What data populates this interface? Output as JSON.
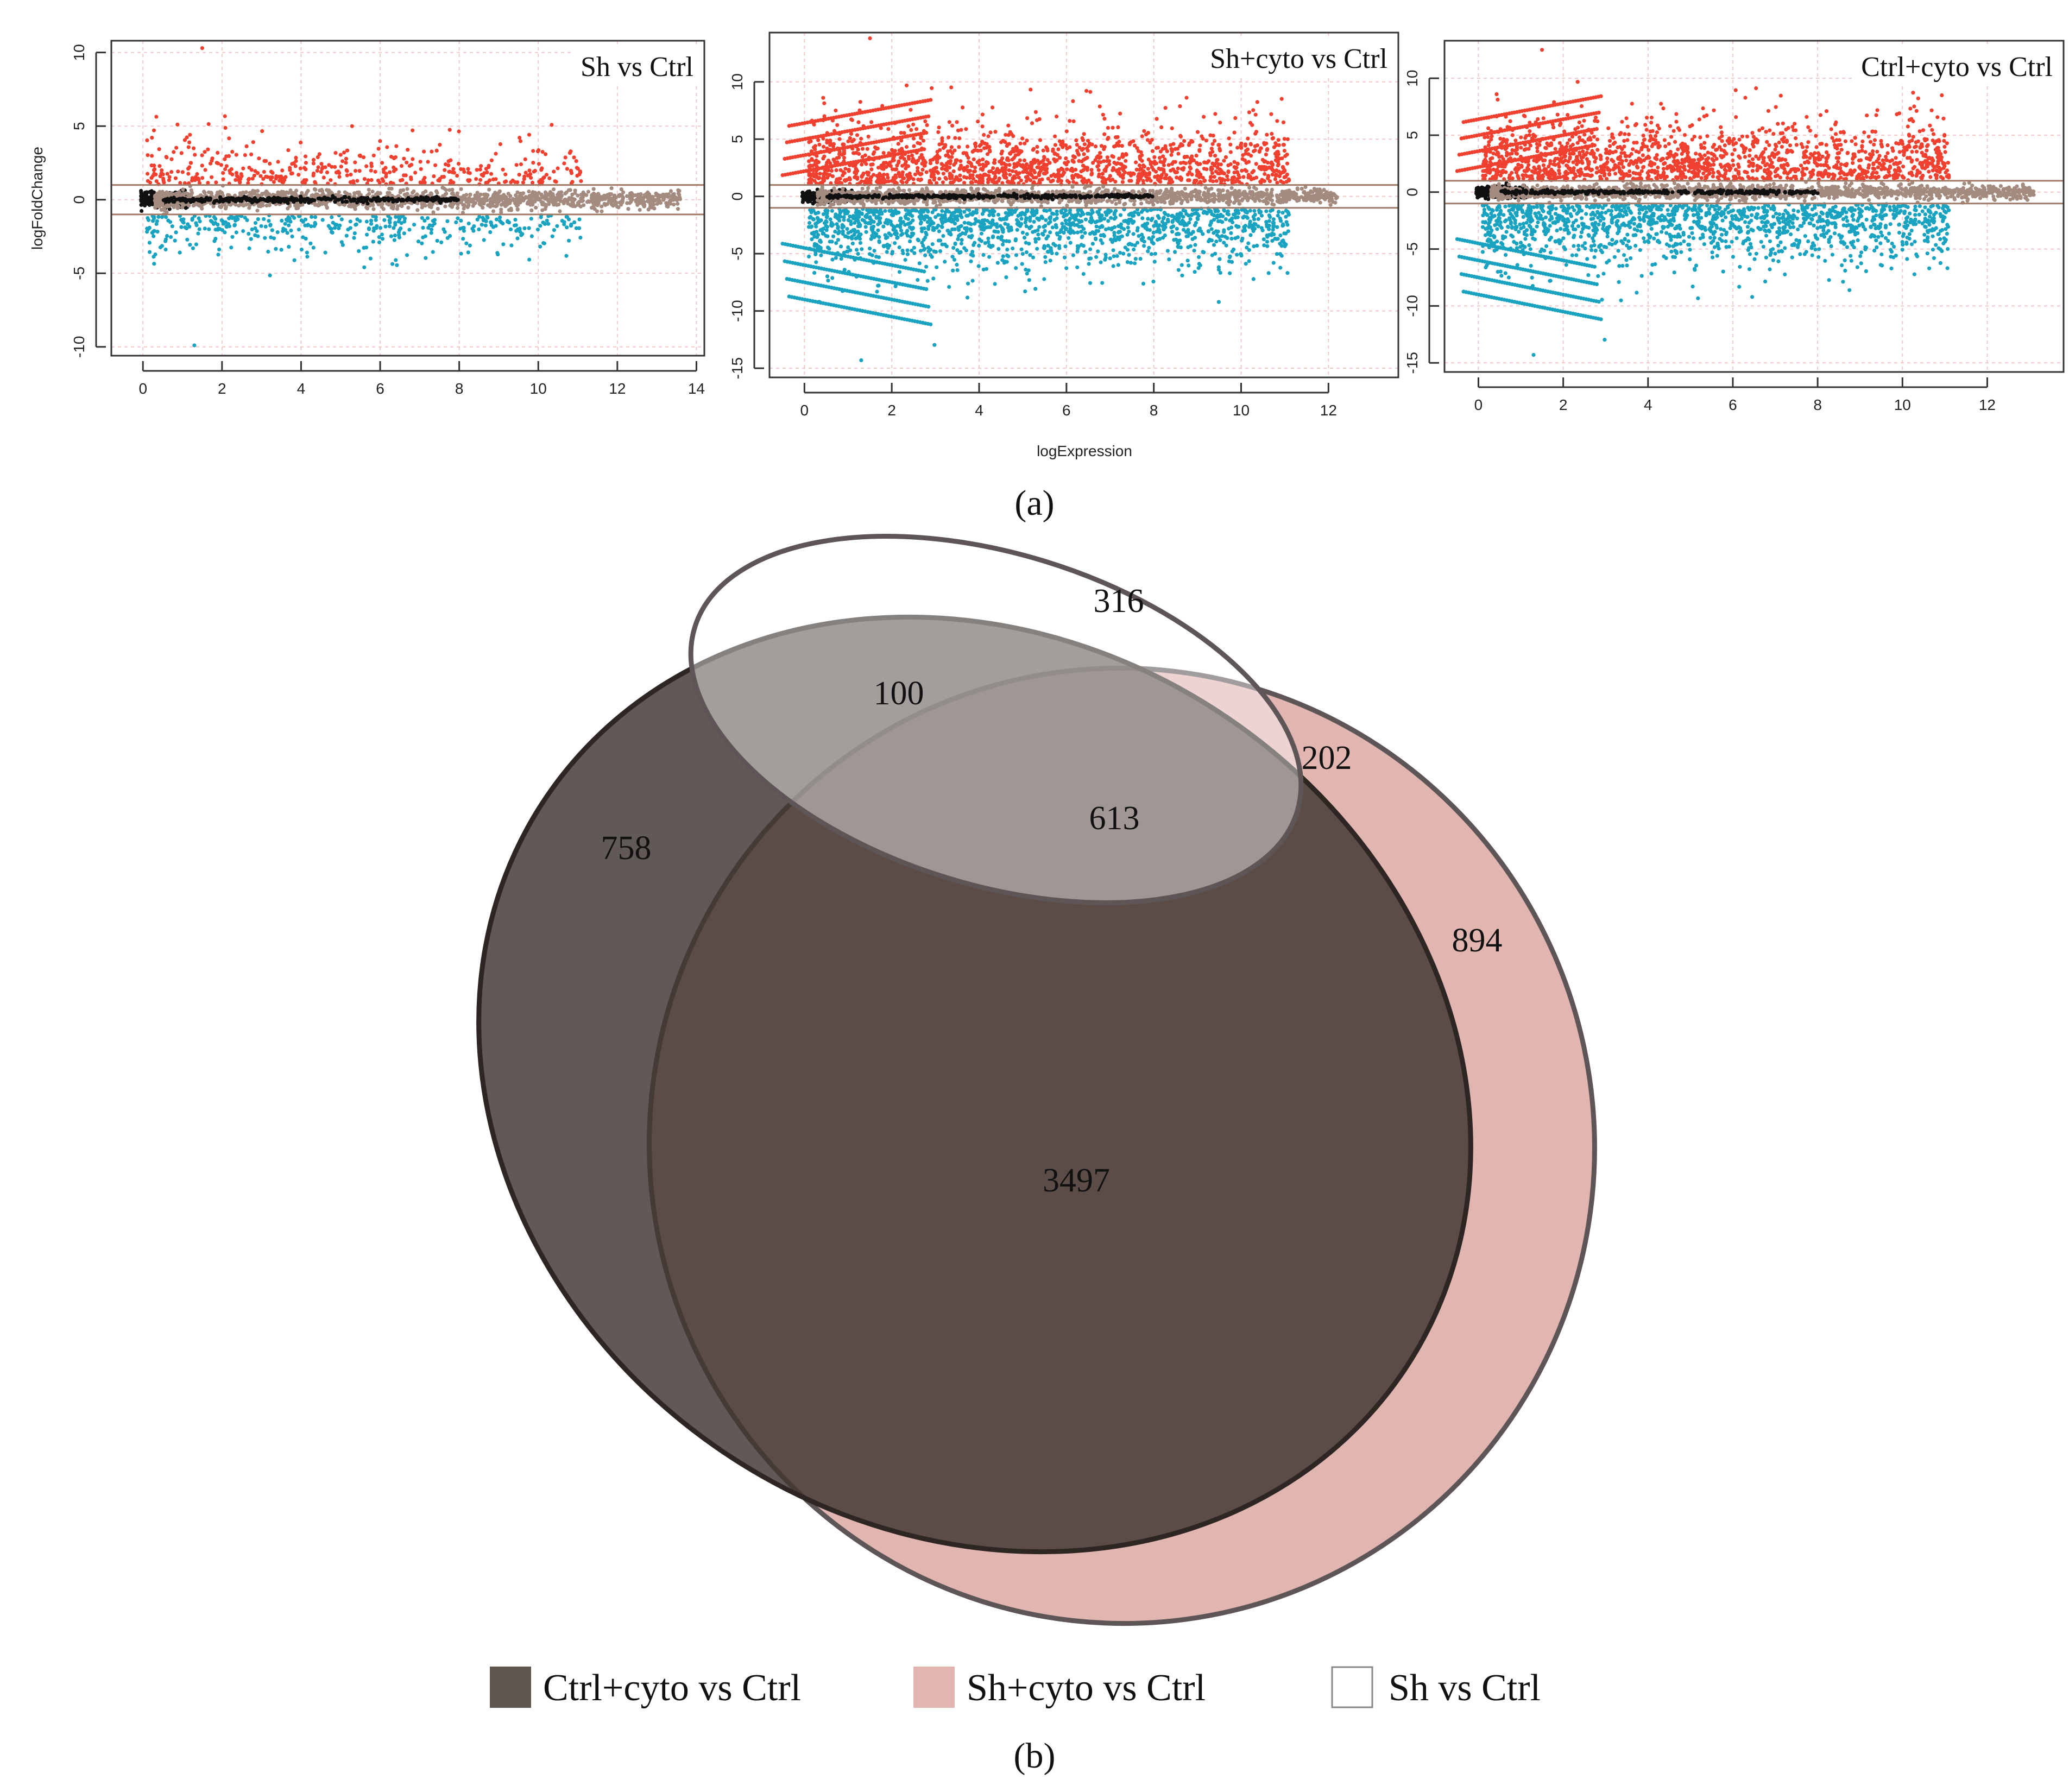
{
  "figure": {
    "panel_a_label": "(a)",
    "panel_b_label": "(b)",
    "shared_x_label": "logExpression"
  },
  "chart_data": [
    {
      "type": "scatter",
      "title": "Sh vs Ctrl",
      "ylabel": "logFoldChange",
      "xlabel": "",
      "xlim": [
        -0.8,
        14.2
      ],
      "ylim": [
        -10.6,
        10.8
      ],
      "x_ticks": [
        0,
        2,
        4,
        6,
        8,
        10,
        12,
        14
      ],
      "y_ticks": [
        -10,
        -5,
        0,
        5,
        10
      ],
      "thresholds": [
        1,
        -1
      ],
      "grid": true,
      "colors": {
        "up": "#f0402f",
        "down": "#1aa3c0",
        "ns": "#a38b80",
        "low": "#101010",
        "threshold": "#a07a66"
      },
      "point_summary": {
        "x_max": 13.8,
        "up_max": 10.3,
        "down_min": -10.1
      }
    },
    {
      "type": "scatter",
      "title": "Sh+cyto vs Ctrl",
      "ylabel": "",
      "xlabel": "logExpression",
      "xlim": [
        -0.8,
        13.6
      ],
      "ylim": [
        -15.8,
        14.3
      ],
      "x_ticks": [
        0,
        2,
        4,
        6,
        8,
        10,
        12
      ],
      "y_ticks": [
        -15,
        -10,
        -5,
        0,
        5,
        10
      ],
      "thresholds": [
        1,
        -1
      ],
      "grid": true,
      "colors": {
        "up": "#f0402f",
        "down": "#1aa3c0",
        "ns": "#a38b80",
        "low": "#101010",
        "threshold": "#a07a66"
      },
      "point_summary": {
        "x_max": 12.4,
        "up_max": 13.8,
        "down_min": -14.5
      }
    },
    {
      "type": "scatter",
      "title": "Ctrl+cyto vs Ctrl",
      "ylabel": "",
      "xlabel": "",
      "xlim": [
        -0.8,
        13.8
      ],
      "ylim": [
        -15.8,
        13.3
      ],
      "x_ticks": [
        0,
        2,
        4,
        6,
        8,
        10,
        12
      ],
      "y_ticks": [
        -15,
        -10,
        -5,
        0,
        5,
        10
      ],
      "thresholds": [
        1,
        -1
      ],
      "grid": true,
      "colors": {
        "up": "#f0402f",
        "down": "#1aa3c0",
        "ns": "#a38b80",
        "low": "#101010",
        "threshold": "#a07a66"
      },
      "point_summary": {
        "x_max": 13.3,
        "up_max": 12.5,
        "down_min": -14.5
      }
    },
    {
      "type": "venn",
      "sets": [
        "Ctrl+cyto vs Ctrl",
        "Sh+cyto vs Ctrl",
        "Sh vs Ctrl"
      ],
      "regions": [
        {
          "sets": [
            "Ctrl+cyto vs Ctrl"
          ],
          "value": 758
        },
        {
          "sets": [
            "Sh+cyto vs Ctrl"
          ],
          "value": 894
        },
        {
          "sets": [
            "Sh vs Ctrl"
          ],
          "value": 316
        },
        {
          "sets": [
            "Ctrl+cyto vs Ctrl",
            "Sh vs Ctrl"
          ],
          "value": 100
        },
        {
          "sets": [
            "Sh+cyto vs Ctrl",
            "Sh vs Ctrl"
          ],
          "value": 202
        },
        {
          "sets": [
            "Ctrl+cyto vs Ctrl",
            "Sh+cyto vs Ctrl"
          ],
          "value": 3497
        },
        {
          "sets": [
            "Ctrl+cyto vs Ctrl",
            "Sh+cyto vs Ctrl",
            "Sh vs Ctrl"
          ],
          "value": 613
        }
      ],
      "legend": [
        {
          "label": "Ctrl+cyto vs Ctrl",
          "color": "#5f5650"
        },
        {
          "label": "Sh+cyto vs Ctrl",
          "color": "#e2b5b0"
        },
        {
          "label": "Sh vs Ctrl",
          "color": "#ffffff"
        }
      ],
      "legend_placement": "bottom"
    }
  ]
}
